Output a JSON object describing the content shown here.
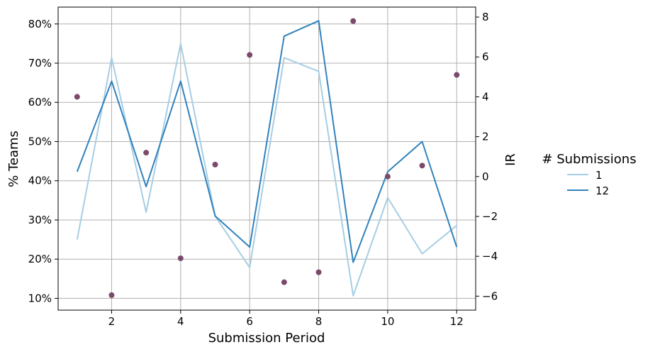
{
  "chart_data": {
    "type": "line",
    "xlabel": "Submission Period",
    "ylabel_left": "% Teams",
    "ylabel_right": "IR",
    "x": [
      1,
      2,
      3,
      4,
      5,
      6,
      7,
      8,
      9,
      10,
      11,
      12
    ],
    "xticks": [
      2,
      4,
      6,
      8,
      10,
      12
    ],
    "xlim": [
      0.45,
      12.55
    ],
    "left_ylim": [
      0.07,
      0.843
    ],
    "left_yticks": [
      0.1,
      0.2,
      0.3,
      0.4,
      0.5,
      0.6,
      0.7,
      0.8
    ],
    "left_ytick_labels": [
      "10%",
      "20%",
      "30%",
      "40%",
      "50%",
      "60%",
      "70%",
      "80%"
    ],
    "right_ylim": [
      -6.7,
      8.5
    ],
    "right_yticks": [
      -6,
      -4,
      -2,
      0,
      2,
      4,
      6,
      8
    ],
    "right_ytick_labels": [
      "−6",
      "−4",
      "−2",
      "0",
      "2",
      "4",
      "6",
      "8"
    ],
    "grid": true,
    "legend": {
      "title": "# Submissions",
      "placement": "center-right outside"
    },
    "series": [
      {
        "name": "1",
        "axis": "left",
        "color": "#a6cee3",
        "values": [
          0.25,
          0.714,
          0.32,
          0.75,
          0.31,
          0.179,
          0.714,
          0.679,
          0.107,
          0.357,
          0.214,
          0.286
        ]
      },
      {
        "name": "12",
        "axis": "left",
        "color": "#3182bd",
        "values": [
          0.423,
          0.654,
          0.385,
          0.654,
          0.31,
          0.231,
          0.769,
          0.808,
          0.192,
          0.423,
          0.5,
          0.231
        ]
      }
    ],
    "scatter": {
      "axis": "right",
      "color": "#7b4a6b",
      "values": [
        4.0,
        -5.95,
        1.2,
        -4.1,
        0.6,
        6.1,
        -5.3,
        -4.8,
        7.8,
        0.0,
        0.55,
        5.1
      ]
    }
  }
}
